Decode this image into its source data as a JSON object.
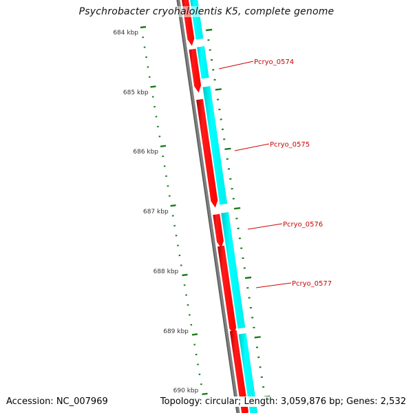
{
  "title": "Psychrobacter cryohalolentis K5, complete genome",
  "footer": {
    "accession": "Accession: NC_007969",
    "summary": "Topology: circular; Length: 3,059,876 bp; Genes: 2,532"
  },
  "colors": {
    "forward_gene": "#ff0000",
    "reverse_gene": "#00ffff",
    "backbone": "#808080",
    "tick": "#1a7a1a",
    "gene_label": "#cc0000",
    "tick_label": "#333333"
  },
  "tick_labels": [
    "684 kbp",
    "685 kbp",
    "686 kbp",
    "687 kbp",
    "688 kbp",
    "689 kbp",
    "690 kbp"
  ],
  "gene_labels": [
    "Pcryo_0574",
    "Pcryo_0575",
    "Pcryo_0576",
    "Pcryo_0577"
  ]
}
